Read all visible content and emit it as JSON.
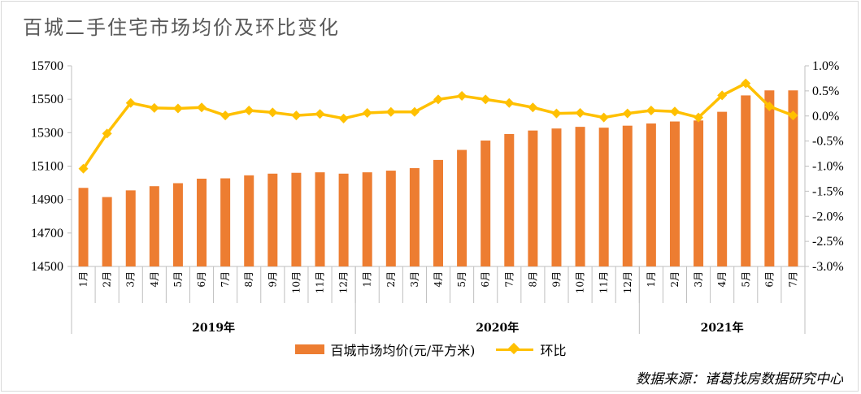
{
  "title": "百城二手住宅市场均价及环比变化",
  "source": "数据来源：诸葛找房数据研究中心",
  "colors": {
    "bar": "#ED7D31",
    "line": "#FFC000",
    "axis": "#BFBFBF"
  },
  "chart_data": {
    "type": "bar",
    "categories": [
      "1月",
      "2月",
      "3月",
      "4月",
      "5月",
      "6月",
      "7月",
      "8月",
      "9月",
      "10月",
      "11月",
      "12月",
      "1月",
      "2月",
      "3月",
      "4月",
      "5月",
      "6月",
      "7月",
      "8月",
      "9月",
      "10月",
      "11月",
      "12月",
      "1月",
      "2月",
      "3月",
      "4月",
      "5月",
      "6月",
      "7月"
    ],
    "year_groups": [
      {
        "label": "2019年",
        "count": 12
      },
      {
        "label": "2020年",
        "count": 12
      },
      {
        "label": "2021年",
        "count": 7
      }
    ],
    "series": [
      {
        "name": "百城市场均价(元/平方米)",
        "type": "bar",
        "axis": "left",
        "values": [
          14970,
          14915,
          14955,
          14980,
          14998,
          15025,
          15027,
          15045,
          15055,
          15060,
          15063,
          15055,
          15063,
          15073,
          15088,
          15137,
          15197,
          15253,
          15292,
          15313,
          15325,
          15335,
          15330,
          15342,
          15355,
          15367,
          15373,
          15425,
          15523,
          15553,
          15553
        ]
      },
      {
        "name": "环比",
        "type": "line",
        "axis": "right",
        "values": [
          -1.05,
          -0.35,
          0.26,
          0.16,
          0.15,
          0.17,
          0.01,
          0.11,
          0.07,
          0.01,
          0.04,
          -0.05,
          0.06,
          0.08,
          0.08,
          0.33,
          0.4,
          0.33,
          0.26,
          0.17,
          0.05,
          0.06,
          -0.03,
          0.05,
          0.11,
          0.09,
          -0.03,
          0.41,
          0.65,
          0.19,
          0.01
        ]
      }
    ],
    "yticks_left": [
      "14500",
      "14700",
      "14900",
      "15100",
      "15300",
      "15500",
      "15700"
    ],
    "ylim_left": [
      14500,
      15700
    ],
    "yticks_right": [
      "-3.0%",
      "-2.5%",
      "-2.0%",
      "-1.5%",
      "-1.0%",
      "-0.5%",
      "0.0%",
      "0.5%",
      "1.0%"
    ],
    "ylim_right": [
      -3.0,
      1.0
    ],
    "grid": false,
    "legend_placement": "bottom"
  }
}
